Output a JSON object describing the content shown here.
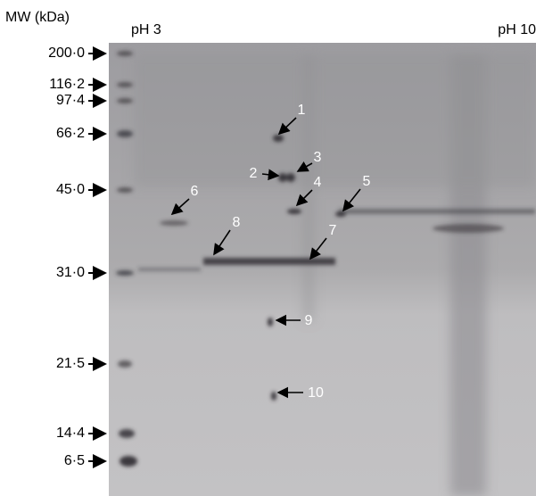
{
  "header": {
    "mw_title": "MW (kDa)",
    "ph_left": "pH 3",
    "ph_right": "pH 10"
  },
  "markers": [
    "200·0",
    "116·2",
    "97·4",
    "66·2",
    "45·0",
    "31·0",
    "21·5",
    "14·4",
    "6·5"
  ],
  "spots": [
    "1",
    "2",
    "3",
    "4",
    "5",
    "6",
    "7",
    "8",
    "9",
    "10"
  ]
}
